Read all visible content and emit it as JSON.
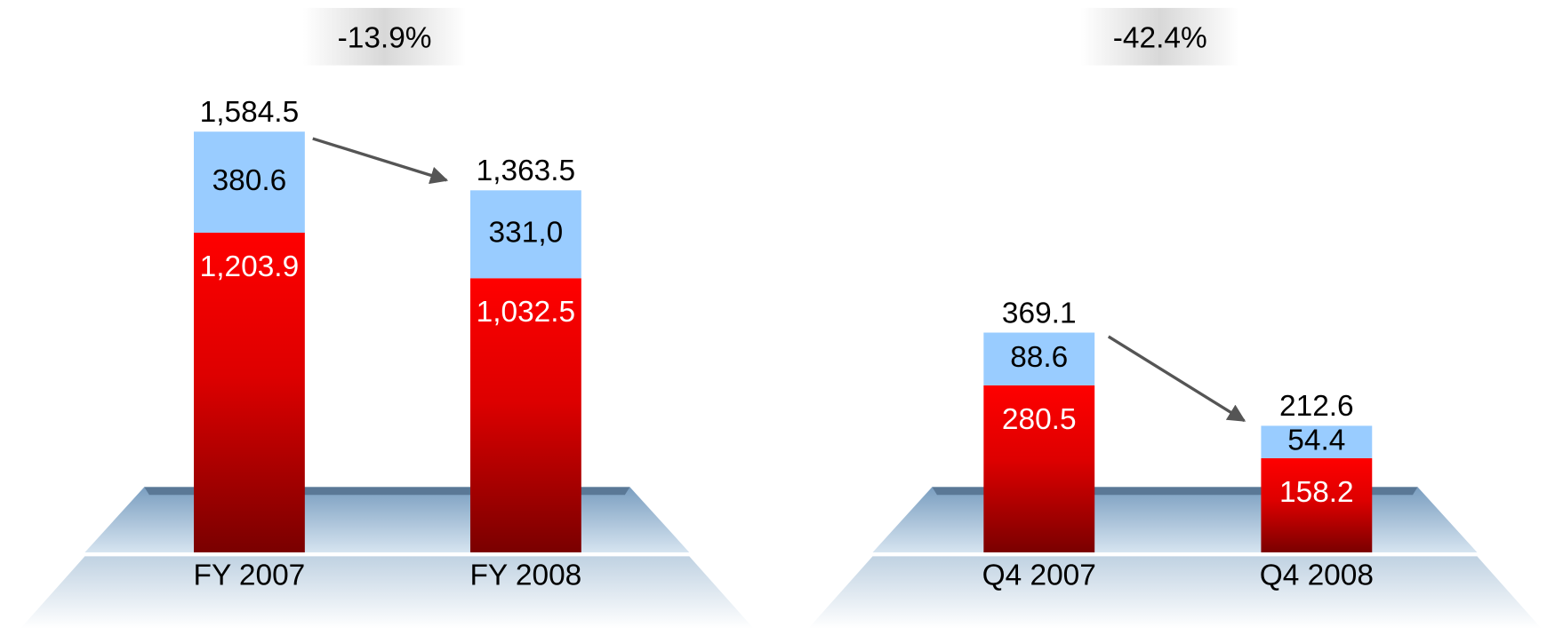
{
  "chart_data": [
    {
      "type": "bar",
      "stacked": true,
      "categories": [
        "FY 2007",
        "FY 2008"
      ],
      "series": [
        {
          "color": "#e00000",
          "values": [
            1203.9,
            1032.5
          ],
          "value_labels": [
            "1,203.9",
            "1,032.5"
          ]
        },
        {
          "color": "#99ccff",
          "values": [
            380.6,
            331.0
          ],
          "value_labels": [
            "380.6",
            "331,0"
          ]
        }
      ],
      "totals": [
        1584.5,
        1363.5
      ],
      "total_labels": [
        "1,584.5",
        "1,363.5"
      ],
      "change": -13.9,
      "change_label": "-13.9%"
    },
    {
      "type": "bar",
      "stacked": true,
      "categories": [
        "Q4 2007",
        "Q4 2008"
      ],
      "series": [
        {
          "color": "#e00000",
          "values": [
            280.5,
            158.2
          ],
          "value_labels": [
            "280.5",
            "158.2"
          ]
        },
        {
          "color": "#99ccff",
          "values": [
            88.6,
            54.4
          ],
          "value_labels": [
            "88.6",
            "54.4"
          ]
        }
      ],
      "totals": [
        369.1,
        212.6
      ],
      "total_labels": [
        "369.1",
        "212.6"
      ],
      "change": -42.4,
      "change_label": "-42.4%"
    }
  ]
}
